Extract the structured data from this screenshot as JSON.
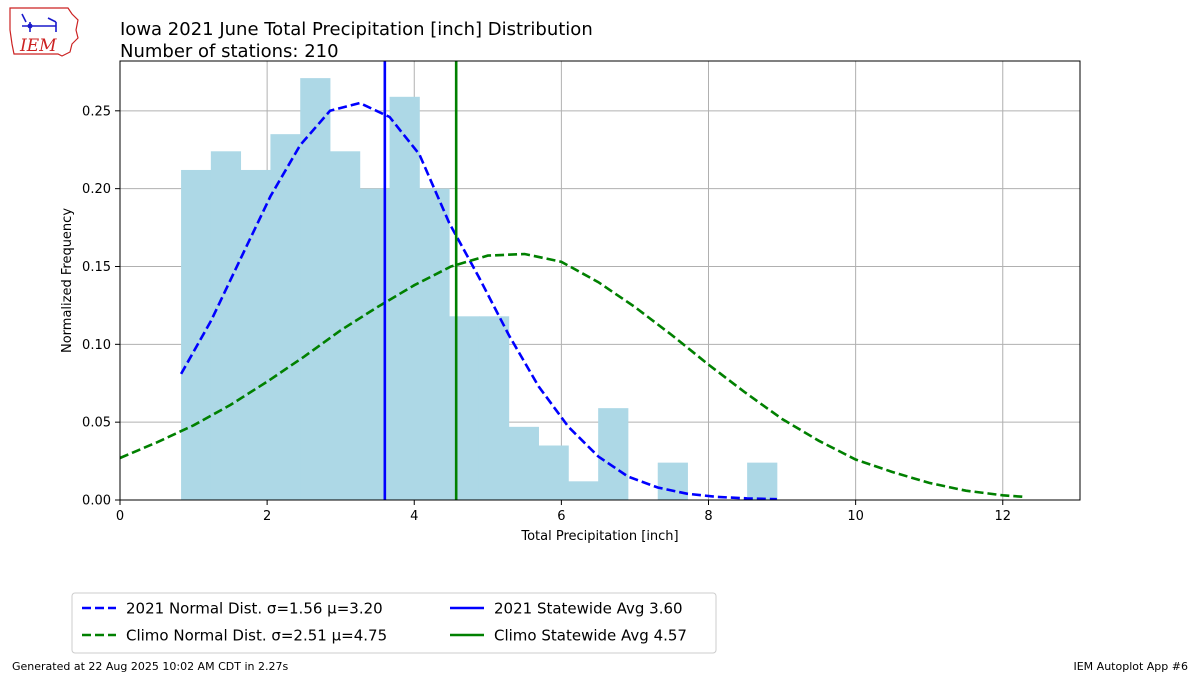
{
  "chart_data": {
    "type": "bar",
    "title": "Iowa 2021 June Total Precipitation [inch] Distribution",
    "subtitle": "Number of stations: 210",
    "xlabel": "Total Precipitation [inch]",
    "ylabel": "Normalized Frequency",
    "xlim": [
      0,
      13.05
    ],
    "ylim": [
      0,
      0.282
    ],
    "xticks": [
      0,
      2,
      4,
      6,
      8,
      10,
      12
    ],
    "yticks": [
      0.0,
      0.05,
      0.1,
      0.15,
      0.2,
      0.25
    ],
    "grid": true,
    "legend_placement": "below-left",
    "histogram": {
      "bin_edges": [
        0.83,
        1.235,
        1.64,
        2.045,
        2.45,
        2.855,
        3.26,
        3.665,
        4.07,
        4.475,
        4.88,
        5.285,
        5.69,
        6.095,
        6.5,
        6.905,
        7.31,
        7.715,
        8.12,
        8.525,
        8.93
      ],
      "values": [
        0.212,
        0.224,
        0.212,
        0.235,
        0.271,
        0.224,
        0.2,
        0.259,
        0.2,
        0.118,
        0.118,
        0.047,
        0.035,
        0.012,
        0.059,
        0.0,
        0.024,
        0.0,
        0.0,
        0.024
      ],
      "color": "#add8e6"
    },
    "series": [
      {
        "name": "2021 Normal Dist. σ=1.56 μ=3.20",
        "style": "dashed",
        "color": "#0000ff",
        "x": [
          0.83,
          1.235,
          1.64,
          2.045,
          2.45,
          2.855,
          3.26,
          3.665,
          4.07,
          4.475,
          4.88,
          5.285,
          5.69,
          6.095,
          6.5,
          6.905,
          7.31,
          7.715,
          8.12,
          8.525,
          8.93
        ],
        "y": [
          0.081,
          0.115,
          0.155,
          0.195,
          0.228,
          0.25,
          0.255,
          0.246,
          0.222,
          0.178,
          0.143,
          0.106,
          0.073,
          0.047,
          0.028,
          0.015,
          0.008,
          0.004,
          0.002,
          0.001,
          0.0005
        ]
      },
      {
        "name": "Climo Normal Dist. σ=2.51 μ=4.75",
        "style": "dashed",
        "color": "#008000",
        "x": [
          0,
          0.5,
          1,
          1.5,
          2,
          2.5,
          3,
          3.5,
          4,
          4.5,
          5,
          5.5,
          6,
          6.5,
          7,
          7.5,
          8,
          8.5,
          9,
          9.5,
          10,
          10.5,
          11,
          11.5,
          12,
          12.3
        ],
        "y": [
          0.027,
          0.037,
          0.048,
          0.061,
          0.076,
          0.092,
          0.109,
          0.124,
          0.138,
          0.15,
          0.157,
          0.158,
          0.153,
          0.14,
          0.124,
          0.106,
          0.087,
          0.069,
          0.052,
          0.038,
          0.026,
          0.018,
          0.011,
          0.006,
          0.003,
          0.002
        ]
      },
      {
        "name": "2021 Statewide Avg 3.60",
        "style": "vline",
        "color": "#0000ff",
        "x": 3.6
      },
      {
        "name": "Climo Statewide Avg 4.57",
        "style": "vline",
        "color": "#008000",
        "x": 4.57
      }
    ]
  },
  "logo": {
    "text": "IEM"
  },
  "footer": {
    "generated": "Generated at 22 Aug 2025 10:02 AM CDT in 2.27s",
    "app": "IEM Autoplot App #6"
  }
}
